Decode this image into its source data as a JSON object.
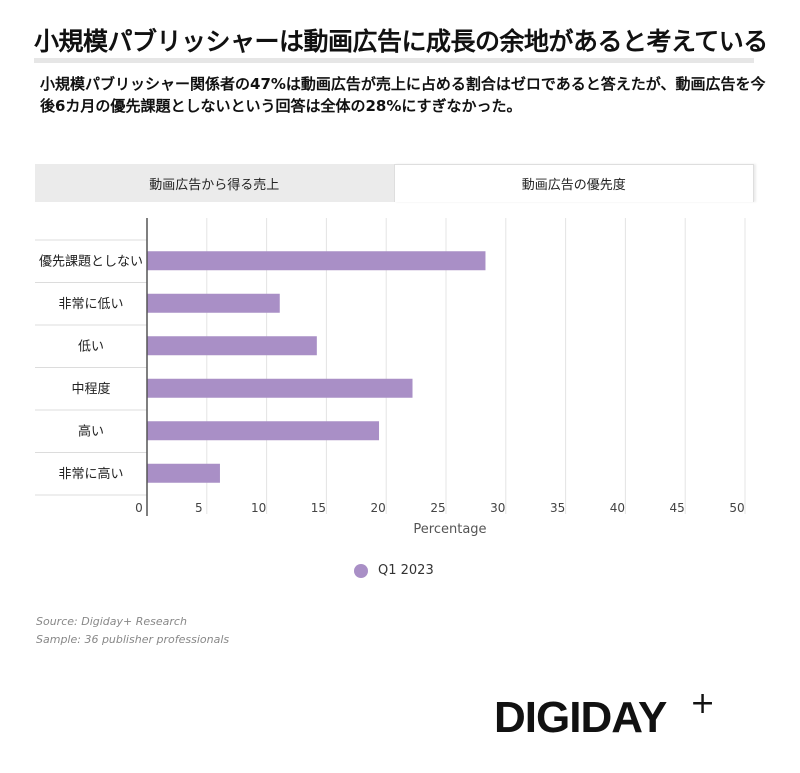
{
  "header": {
    "title": "小規模パブリッシャーは動画広告に成長の余地があると考えている",
    "subtitle": "小規模パブリッシャー関係者の47%は動画広告が売上に占める割合はゼロであると答えたが、動画広告を今後6カ月の優先課題としないという回答は全体の28%にすぎなかった。"
  },
  "tabs": [
    {
      "label": "動画広告から得る売上",
      "active": false
    },
    {
      "label": "動画広告の優先度",
      "active": true
    }
  ],
  "chart_data": {
    "type": "bar",
    "orientation": "horizontal",
    "categories": [
      "優先課題としない",
      "非常に低い",
      "低い",
      "中程度",
      "高い",
      "非常に高い"
    ],
    "series": [
      {
        "name": "Q1 2023",
        "values": [
          28.3,
          11.1,
          14.2,
          22.2,
          19.4,
          6.1
        ],
        "color": "#a98fc6"
      }
    ],
    "xlabel": "Percentage",
    "ylabel": "",
    "xlim": [
      0,
      50
    ],
    "xticks": [
      0,
      5,
      10,
      15,
      20,
      25,
      30,
      35,
      40,
      45,
      50
    ],
    "grid": true,
    "legend": "bottom-center"
  },
  "legend": {
    "label": "Q1 2023"
  },
  "footer": {
    "source": "Source: Digiday+ Research",
    "sample": "Sample: 36 publisher professionals",
    "brand": "DIGIDAY",
    "brand_plus": "+"
  }
}
